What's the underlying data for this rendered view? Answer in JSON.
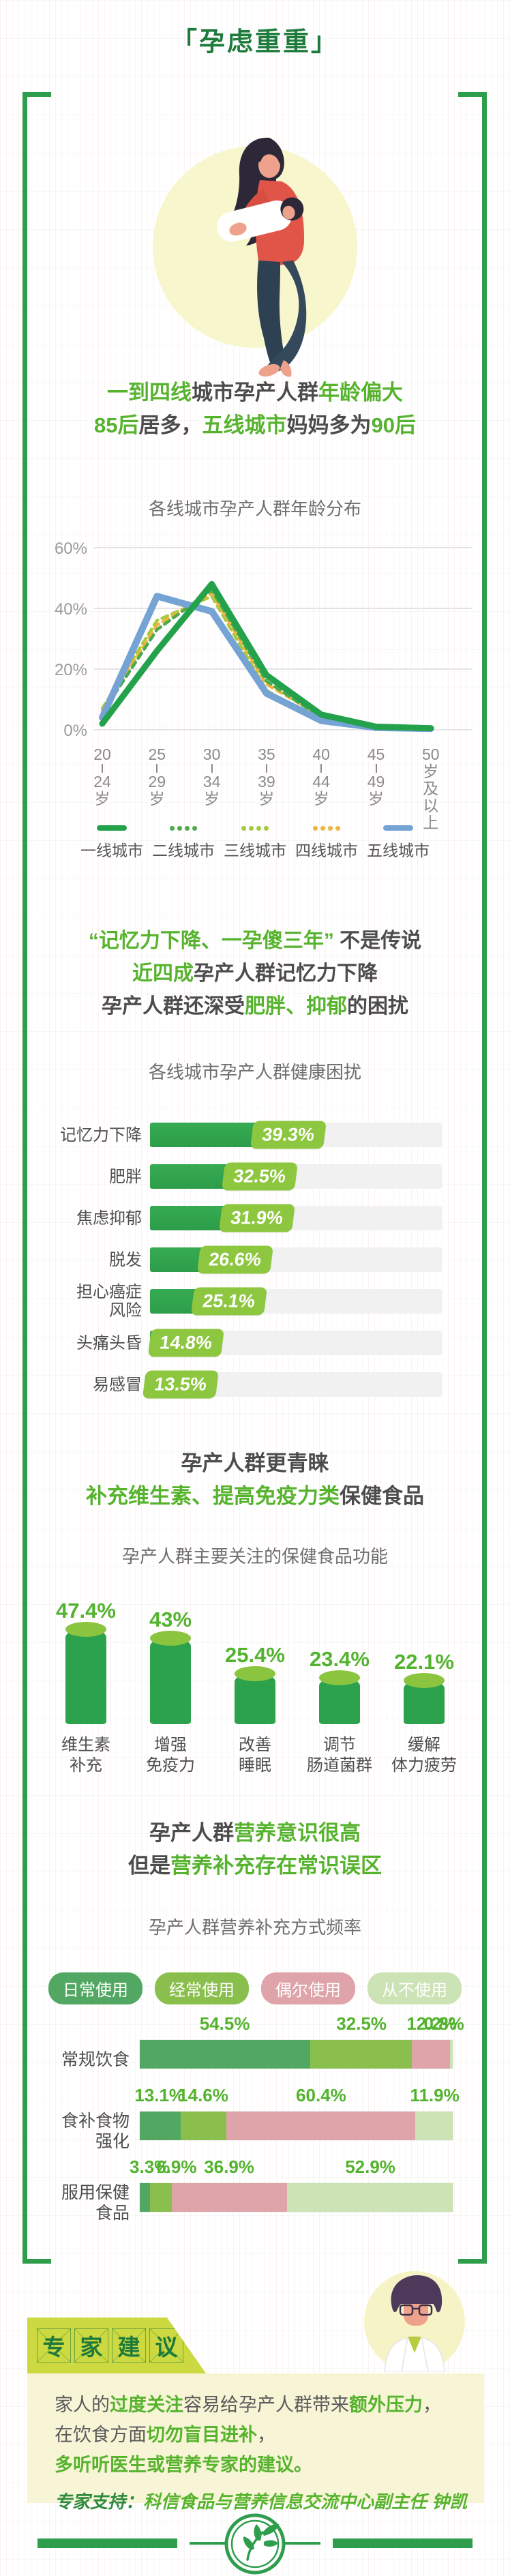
{
  "title": "「孕虑重重」",
  "colors": {
    "title_green": "#1e7b3c",
    "accent_green": "#56b32d",
    "frame_green": "#2f9e4c",
    "bar_green": "#31a44e",
    "badge_green": "#8dc63f",
    "text_dark": "#4c4c4c"
  },
  "icons": {
    "footer_emblem": "leaf-branch",
    "hero": "mother-holding-baby",
    "expert": "doctor-avatar"
  },
  "headings": {
    "age": {
      "line1": [
        {
          "t": "一到四线",
          "a": true
        },
        {
          "t": "城市孕产人群",
          "a": false
        },
        {
          "t": "年龄偏大",
          "a": true
        }
      ],
      "line2": [
        {
          "t": "85后",
          "a": true
        },
        {
          "t": "居多，",
          "a": false
        },
        {
          "t": "五线城市",
          "a": true
        },
        {
          "t": "妈妈多为",
          "a": false
        },
        {
          "t": "90后",
          "a": true
        }
      ]
    },
    "memory": {
      "line1": [
        {
          "t": "“记忆力下降、一孕傻三年”",
          "a": true
        },
        {
          "t": " 不是传说",
          "a": false
        }
      ],
      "line2": [
        {
          "t": "近四成",
          "a": true
        },
        {
          "t": "孕产人群记忆力下降",
          "a": false
        }
      ],
      "line3": [
        {
          "t": "孕产人群还深受",
          "a": false
        },
        {
          "t": "肥胖、抑郁",
          "a": true
        },
        {
          "t": "的困扰",
          "a": false
        }
      ]
    },
    "supplement": {
      "line1": [
        {
          "t": "孕产人群更青睐",
          "a": false
        }
      ],
      "line2": [
        {
          "t": "补充维生素、提高免疫力类",
          "a": true
        },
        {
          "t": "保健食品",
          "a": false
        }
      ]
    },
    "awareness": {
      "line1": [
        {
          "t": "孕产人群",
          "a": false
        },
        {
          "t": "营养意识很高",
          "a": true
        }
      ],
      "line2": [
        {
          "t": "但是",
          "a": false
        },
        {
          "t": "营养补充存在常识误区",
          "a": true
        }
      ]
    }
  },
  "chart_data": [
    {
      "type": "line",
      "title": "各线城市孕产人群年龄分布",
      "x_categories": [
        "20-24岁",
        "25-29岁",
        "30-34岁",
        "35-39岁",
        "40-44岁",
        "45-49岁",
        "50岁及以上"
      ],
      "y_ticks": [
        {
          "label": "60%",
          "value": 60
        },
        {
          "label": "40%",
          "value": 40
        },
        {
          "label": "20%",
          "value": 20
        },
        {
          "label": "0%",
          "value": 0
        }
      ],
      "ylim": [
        0,
        65
      ],
      "grid": true,
      "legend_position": "bottom",
      "series": [
        {
          "name": "一线城市",
          "style": "solid",
          "color": "#23a14b",
          "values": [
            2,
            26,
            48,
            18,
            5,
            1,
            0.5
          ]
        },
        {
          "name": "二线城市",
          "style": "dashed",
          "color": "#4caa4d",
          "values": [
            5.5,
            33,
            46,
            16,
            4,
            1,
            0.6
          ]
        },
        {
          "name": "三线城市",
          "style": "dashed",
          "color": "#a6c93b",
          "values": [
            7,
            36,
            44,
            13,
            2.5,
            1,
            0.6
          ]
        },
        {
          "name": "四线城市",
          "style": "dashed",
          "color": "#f0b441",
          "values": [
            6,
            34.5,
            45,
            15,
            4.5,
            1.2,
            0.8
          ]
        },
        {
          "name": "五线城市",
          "style": "solid",
          "color": "#74a3d4",
          "values": [
            4,
            44,
            39,
            12,
            3,
            0.7,
            0.4
          ]
        }
      ]
    },
    {
      "type": "bar",
      "orientation": "horizontal",
      "title": "各线城市孕产人群健康困扰",
      "categories": [
        "记忆力下降",
        "肥胖",
        "焦虑抑郁",
        "脱发",
        "担心癌症风险",
        "头痛头昏",
        "易感冒"
      ],
      "label_lines": [
        [
          "记忆力下降"
        ],
        [
          "肥胖"
        ],
        [
          "焦虑抑郁"
        ],
        [
          "脱发"
        ],
        [
          "担心癌症",
          "风险"
        ],
        [
          "头痛头昏"
        ],
        [
          "易感冒"
        ]
      ],
      "values": [
        39.3,
        32.5,
        31.9,
        26.6,
        25.1,
        14.8,
        13.5
      ],
      "value_labels": [
        "39.3%",
        "32.5%",
        "31.9%",
        "26.6%",
        "25.1%",
        "14.8%",
        "13.5%"
      ]
    },
    {
      "type": "bar",
      "orientation": "vertical",
      "title": "孕产人群主要关注的保健食品功能",
      "categories": [
        "维生素补充",
        "增强免疫力",
        "改善睡眠",
        "调节肠道菌群",
        "缓解体力疲劳"
      ],
      "label_lines": [
        [
          "维生素",
          "补充"
        ],
        [
          "增强",
          "免疫力"
        ],
        [
          "改善",
          "睡眠"
        ],
        [
          "调节",
          "肠道菌群"
        ],
        [
          "缓解",
          "体力疲劳"
        ]
      ],
      "values": [
        47.4,
        43,
        25.4,
        23.4,
        22.1
      ],
      "value_labels": [
        "47.4%",
        "43%",
        "25.4%",
        "23.4%",
        "22.1%"
      ]
    },
    {
      "type": "bar",
      "subtype": "stacked-horizontal",
      "title": "孕产人群营养补充方式频率",
      "legend": [
        "日常使用",
        "经常使用",
        "偶尔使用",
        "从不使用"
      ],
      "legend_colors": [
        "#52a862",
        "#8abf4e",
        "#dfa4a9",
        "#cce3b5"
      ],
      "categories": [
        "常规饮食",
        "食补食物强化",
        "服用保健食品"
      ],
      "label_lines": [
        [
          "常规饮食"
        ],
        [
          "食补食物",
          "强化"
        ],
        [
          "服用保健",
          "食品"
        ]
      ],
      "series": [
        {
          "name": "日常使用",
          "values": [
            54.5,
            13.1,
            3.3
          ]
        },
        {
          "name": "经常使用",
          "values": [
            32.5,
            14.6,
            6.9
          ]
        },
        {
          "name": "偶尔使用",
          "values": [
            12.2,
            60.4,
            36.9
          ]
        },
        {
          "name": "从不使用",
          "values": [
            0.8,
            11.9,
            52.9
          ]
        }
      ],
      "value_labels": [
        [
          "54.5%",
          "32.5%",
          "12.2%",
          "0.8%"
        ],
        [
          "13.1%",
          "14.6%",
          "60.4%",
          "11.9%"
        ],
        [
          "3.3%",
          "6.9%",
          "36.9%",
          "52.9%"
        ]
      ]
    }
  ],
  "expert": {
    "banner": "专家建议",
    "banner_chars": [
      "专",
      "家",
      "建",
      "议"
    ],
    "lines": [
      [
        {
          "t": "家人的",
          "a": false
        },
        {
          "t": "过度关注",
          "a": true
        },
        {
          "t": "容易给孕产人群带来",
          "a": false
        },
        {
          "t": "额外压力",
          "a": true
        },
        {
          "t": "，",
          "a": false
        }
      ],
      [
        {
          "t": "在饮食方面",
          "a": false
        },
        {
          "t": "切勿盲目进补",
          "a": true
        },
        {
          "t": "，",
          "a": false
        }
      ],
      [
        {
          "t": "多听听医生或营养专家的建议。",
          "a": true
        }
      ]
    ],
    "support_label": "专家支持：",
    "support_text": "科信食品与营养信息交流中心副主任  钟凯"
  }
}
